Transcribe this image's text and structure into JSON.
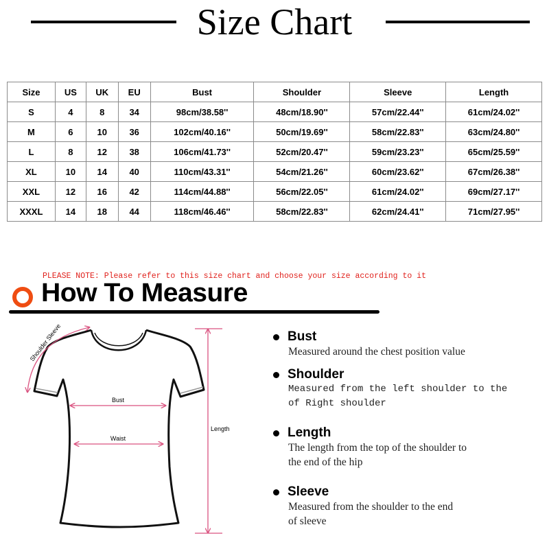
{
  "title": "Size Chart",
  "table": {
    "headers": [
      "Size",
      "US",
      "UK",
      "EU",
      "Bust",
      "Shoulder",
      "Sleeve",
      "Length"
    ],
    "rows": [
      [
        "S",
        "4",
        "8",
        "34",
        "98cm/38.58''",
        "48cm/18.90''",
        "57cm/22.44''",
        "61cm/24.02''"
      ],
      [
        "M",
        "6",
        "10",
        "36",
        "102cm/40.16''",
        "50cm/19.69''",
        "58cm/22.83''",
        "63cm/24.80''"
      ],
      [
        "L",
        "8",
        "12",
        "38",
        "106cm/41.73''",
        "52cm/20.47''",
        "59cm/23.23''",
        "65cm/25.59''"
      ],
      [
        "XL",
        "10",
        "14",
        "40",
        "110cm/43.31''",
        "54cm/21.26''",
        "60cm/23.62''",
        "67cm/26.38''"
      ],
      [
        "XXL",
        "12",
        "16",
        "42",
        "114cm/44.88''",
        "56cm/22.05''",
        "61cm/24.02''",
        "69cm/27.17''"
      ],
      [
        "XXXL",
        "14",
        "18",
        "44",
        "118cm/46.46''",
        "58cm/22.83''",
        "62cm/24.41''",
        "71cm/27.95''"
      ]
    ]
  },
  "note": "PLEASE NOTE: Please refer to this size chart and choose your size according to it",
  "how_to": {
    "title": "How To Measure",
    "diagram_labels": {
      "shoulder_sleeve": "Shoulder Sleeve",
      "bust": "Bust",
      "waist": "Waist",
      "length": "Length"
    },
    "items": [
      {
        "label": "Bust",
        "text": [
          "Measured around the chest position value"
        ]
      },
      {
        "label": "Shoulder",
        "text": [
          "Measured from the left shoulder to the",
          "of Right shoulder"
        ]
      },
      {
        "label": "Length",
        "text": [
          "The length from the top of the shoulder to",
          "the end of the hip"
        ]
      },
      {
        "label": "Sleeve",
        "text": [
          "Measured from the shoulder to the end",
          "of sleeve"
        ]
      }
    ]
  },
  "colors": {
    "accent_orange": "#ef4d12",
    "note_red": "#e0201b",
    "measure_pink": "#d9527f"
  }
}
